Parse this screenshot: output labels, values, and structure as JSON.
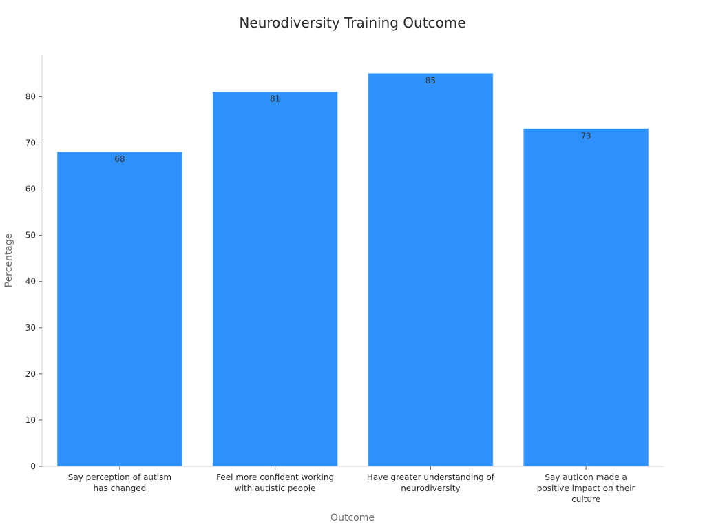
{
  "chart_data": {
    "type": "bar",
    "title": "Neurodiversity Training Outcome",
    "xlabel": "Outcome",
    "ylabel": "Percentage",
    "categories": [
      [
        "Say perception of autism",
        "has changed"
      ],
      [
        "Feel more confident working",
        "with autistic people"
      ],
      [
        "Have greater understanding of",
        "neurodiversity"
      ],
      [
        "Say auticon made a",
        "positive impact on their",
        "culture"
      ]
    ],
    "values": [
      68,
      81,
      85,
      73
    ],
    "ylim": [
      0,
      89
    ],
    "yticks": [
      0,
      10,
      20,
      30,
      40,
      50,
      60,
      70,
      80
    ],
    "bar_color": "#2E90FA",
    "grid": false,
    "legend": "none"
  }
}
